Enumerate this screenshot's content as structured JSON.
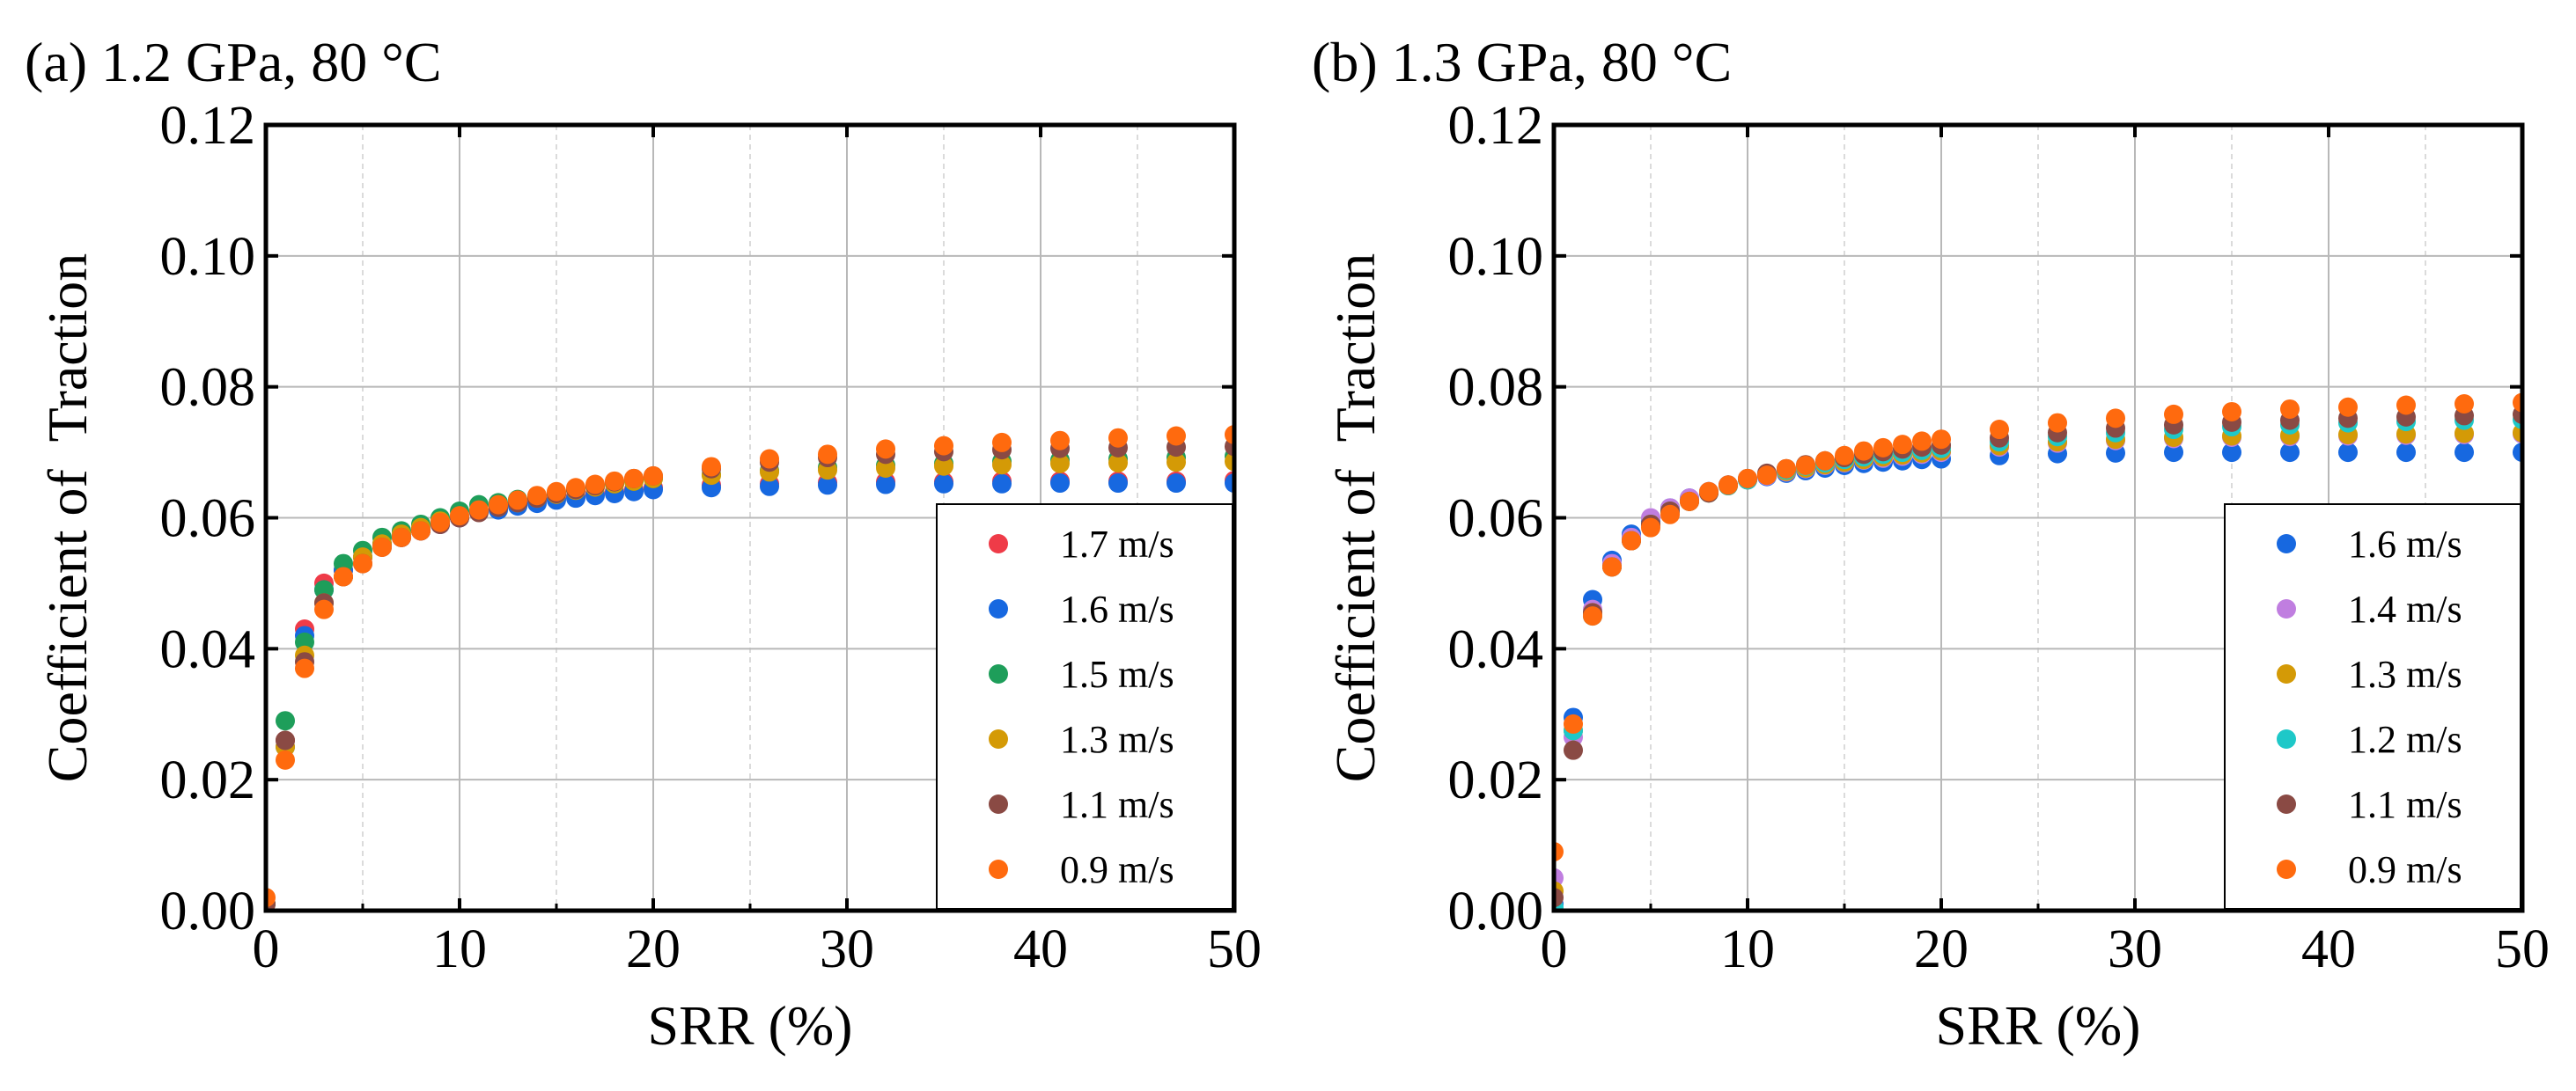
{
  "chart_data": [
    {
      "type": "scatter",
      "panel_label": "(a) 1.2 GPa, 80 °C",
      "xlabel": "SRR (%)",
      "ylabel": "Coefficient of  Traction",
      "xlim": [
        0,
        50
      ],
      "ylim": [
        0,
        0.12
      ],
      "x_ticks": [
        0,
        10,
        20,
        30,
        40,
        50
      ],
      "x_tick_labels": [
        "0",
        "10",
        "20",
        "30",
        "40",
        "50"
      ],
      "y_ticks": [
        0,
        0.02,
        0.04,
        0.06,
        0.08,
        0.1,
        0.12
      ],
      "y_tick_labels": [
        "0.00",
        "0.02",
        "0.04",
        "0.06",
        "0.08",
        "0.10",
        "0.12"
      ],
      "grid": true,
      "legend_position": "bottom-right",
      "x": [
        0,
        1,
        2,
        3,
        4,
        5,
        6,
        7,
        8,
        9,
        10,
        11,
        12,
        13,
        14,
        15,
        16,
        17,
        18,
        19,
        20,
        23,
        26,
        29,
        32,
        35,
        38,
        41,
        44,
        47,
        50
      ],
      "series": [
        {
          "name": "1.7 m/s",
          "color": "#ef3b48",
          "values": [
            0.001,
            0.026,
            0.043,
            0.05,
            0.052,
            0.054,
            0.056,
            0.057,
            0.058,
            0.059,
            0.06,
            0.061,
            0.0615,
            0.062,
            0.0625,
            0.063,
            0.0633,
            0.0637,
            0.064,
            0.0643,
            0.0646,
            0.065,
            0.0652,
            0.0654,
            0.0655,
            0.0655,
            0.0656,
            0.0656,
            0.0656,
            0.0656,
            0.0657
          ]
        },
        {
          "name": "1.6 m/s",
          "color": "#1768e0",
          "values": [
            0.001,
            0.025,
            0.042,
            0.049,
            0.052,
            0.054,
            0.056,
            0.057,
            0.058,
            0.059,
            0.06,
            0.061,
            0.0612,
            0.0618,
            0.0622,
            0.0627,
            0.063,
            0.0634,
            0.0637,
            0.064,
            0.0643,
            0.0646,
            0.0648,
            0.065,
            0.0651,
            0.0652,
            0.0652,
            0.0653,
            0.0653,
            0.0653,
            0.0653
          ]
        },
        {
          "name": "1.5 m/s",
          "color": "#1e9e5a",
          "values": [
            0.001,
            0.029,
            0.041,
            0.049,
            0.053,
            0.055,
            0.057,
            0.058,
            0.059,
            0.06,
            0.061,
            0.062,
            0.0623,
            0.0628,
            0.0633,
            0.0638,
            0.0643,
            0.0648,
            0.0652,
            0.0656,
            0.066,
            0.0666,
            0.0672,
            0.0677,
            0.068,
            0.0683,
            0.0686,
            0.0688,
            0.069,
            0.0692,
            0.0694
          ]
        },
        {
          "name": "1.3 m/s",
          "color": "#d49a06",
          "values": [
            0.001,
            0.025,
            0.039,
            0.047,
            0.051,
            0.054,
            0.056,
            0.0575,
            0.0585,
            0.0595,
            0.0603,
            0.061,
            0.0617,
            0.0623,
            0.063,
            0.0636,
            0.0642,
            0.0647,
            0.0652,
            0.0656,
            0.066,
            0.0665,
            0.067,
            0.0673,
            0.0676,
            0.0679,
            0.0681,
            0.0683,
            0.0684,
            0.0685,
            0.0686
          ]
        },
        {
          "name": "1.1 m/s",
          "color": "#8a4a44",
          "values": [
            0.001,
            0.026,
            0.038,
            0.047,
            0.051,
            0.053,
            0.0555,
            0.057,
            0.058,
            0.059,
            0.06,
            0.0608,
            0.0616,
            0.0623,
            0.063,
            0.0637,
            0.0643,
            0.0649,
            0.0655,
            0.066,
            0.0664,
            0.0675,
            0.0685,
            0.0692,
            0.0697,
            0.0701,
            0.0704,
            0.0706,
            0.0707,
            0.0708,
            0.0709
          ]
        },
        {
          "name": "0.9 m/s",
          "color": "#ff6a0e",
          "values": [
            0.002,
            0.023,
            0.037,
            0.046,
            0.051,
            0.053,
            0.0555,
            0.057,
            0.058,
            0.0593,
            0.0603,
            0.0612,
            0.062,
            0.0627,
            0.0634,
            0.064,
            0.0646,
            0.0651,
            0.0656,
            0.066,
            0.0664,
            0.0678,
            0.069,
            0.0697,
            0.0705,
            0.071,
            0.0715,
            0.0718,
            0.0722,
            0.0725,
            0.0727
          ]
        }
      ]
    },
    {
      "type": "scatter",
      "panel_label": "(b) 1.3 GPa, 80 °C",
      "xlabel": "SRR (%)",
      "ylabel": "Coefficient of  Traction",
      "xlim": [
        0,
        50
      ],
      "ylim": [
        0,
        0.12
      ],
      "x_ticks": [
        0,
        10,
        20,
        30,
        40,
        50
      ],
      "x_tick_labels": [
        "0",
        "10",
        "20",
        "30",
        "40",
        "50"
      ],
      "y_ticks": [
        0,
        0.02,
        0.04,
        0.06,
        0.08,
        0.1,
        0.12
      ],
      "y_tick_labels": [
        "0.00",
        "0.02",
        "0.04",
        "0.06",
        "0.08",
        "0.10",
        "0.12"
      ],
      "grid": true,
      "legend_position": "bottom-right",
      "x": [
        0,
        1,
        2,
        3,
        4,
        5,
        6,
        7,
        8,
        9,
        10,
        11,
        12,
        13,
        14,
        15,
        16,
        17,
        18,
        19,
        20,
        23,
        26,
        29,
        32,
        35,
        38,
        41,
        44,
        47,
        50
      ],
      "series": [
        {
          "name": "1.6 m/s",
          "color": "#1768e0",
          "values": [
            0.001,
            0.0295,
            0.0475,
            0.0535,
            0.0575,
            0.0595,
            0.0615,
            0.063,
            0.064,
            0.065,
            0.0658,
            0.0663,
            0.0668,
            0.0672,
            0.0676,
            0.068,
            0.0683,
            0.0685,
            0.0687,
            0.0689,
            0.069,
            0.0695,
            0.0698,
            0.0699,
            0.07,
            0.07,
            0.07,
            0.07,
            0.07,
            0.07,
            0.07
          ]
        },
        {
          "name": "1.4 m/s",
          "color": "#c07ee0",
          "values": [
            0.005,
            0.0265,
            0.046,
            0.053,
            0.057,
            0.06,
            0.0615,
            0.063,
            0.064,
            0.065,
            0.0658,
            0.0664,
            0.067,
            0.0675,
            0.068,
            0.0684,
            0.0688,
            0.0691,
            0.0694,
            0.0697,
            0.07,
            0.0708,
            0.0714,
            0.0718,
            0.0721,
            0.0723,
            0.0724,
            0.0725,
            0.0726,
            0.0727,
            0.0728
          ]
        },
        {
          "name": "1.3 m/s",
          "color": "#d49a06",
          "values": [
            0.003,
            0.0275,
            0.0455,
            0.0525,
            0.0565,
            0.059,
            0.061,
            0.0625,
            0.0638,
            0.0649,
            0.0658,
            0.0665,
            0.0671,
            0.0676,
            0.0681,
            0.0685,
            0.0689,
            0.0693,
            0.0696,
            0.0699,
            0.0702,
            0.071,
            0.0716,
            0.072,
            0.0723,
            0.0725,
            0.0726,
            0.0727,
            0.0728,
            0.0729,
            0.073
          ]
        },
        {
          "name": "1.2 m/s",
          "color": "#1ec8c8",
          "values": [
            0.0005,
            0.0275,
            0.045,
            0.0525,
            0.0565,
            0.059,
            0.061,
            0.0625,
            0.0638,
            0.0649,
            0.0658,
            0.0666,
            0.0673,
            0.0679,
            0.0684,
            0.0689,
            0.0693,
            0.0697,
            0.07,
            0.0703,
            0.0706,
            0.0716,
            0.0724,
            0.073,
            0.0735,
            0.0739,
            0.0742,
            0.0745,
            0.0747,
            0.0749,
            0.075
          ]
        },
        {
          "name": "1.1 m/s",
          "color": "#8a4a44",
          "values": [
            0.002,
            0.0245,
            0.0455,
            0.0525,
            0.0565,
            0.059,
            0.061,
            0.0625,
            0.0638,
            0.065,
            0.066,
            0.0668,
            0.0675,
            0.0681,
            0.0687,
            0.0692,
            0.0697,
            0.0701,
            0.0705,
            0.0708,
            0.0711,
            0.0722,
            0.073,
            0.0737,
            0.0742,
            0.0746,
            0.0749,
            0.0752,
            0.0754,
            0.0756,
            0.0758
          ]
        },
        {
          "name": "0.9 m/s",
          "color": "#ff6a0e",
          "values": [
            0.009,
            0.0285,
            0.045,
            0.0525,
            0.0565,
            0.0585,
            0.0605,
            0.0625,
            0.064,
            0.065,
            0.066,
            0.0665,
            0.0675,
            0.068,
            0.0687,
            0.0695,
            0.0702,
            0.0707,
            0.0712,
            0.0717,
            0.072,
            0.0735,
            0.0745,
            0.0752,
            0.0758,
            0.0762,
            0.0766,
            0.0769,
            0.0772,
            0.0774,
            0.0776
          ]
        }
      ]
    }
  ]
}
